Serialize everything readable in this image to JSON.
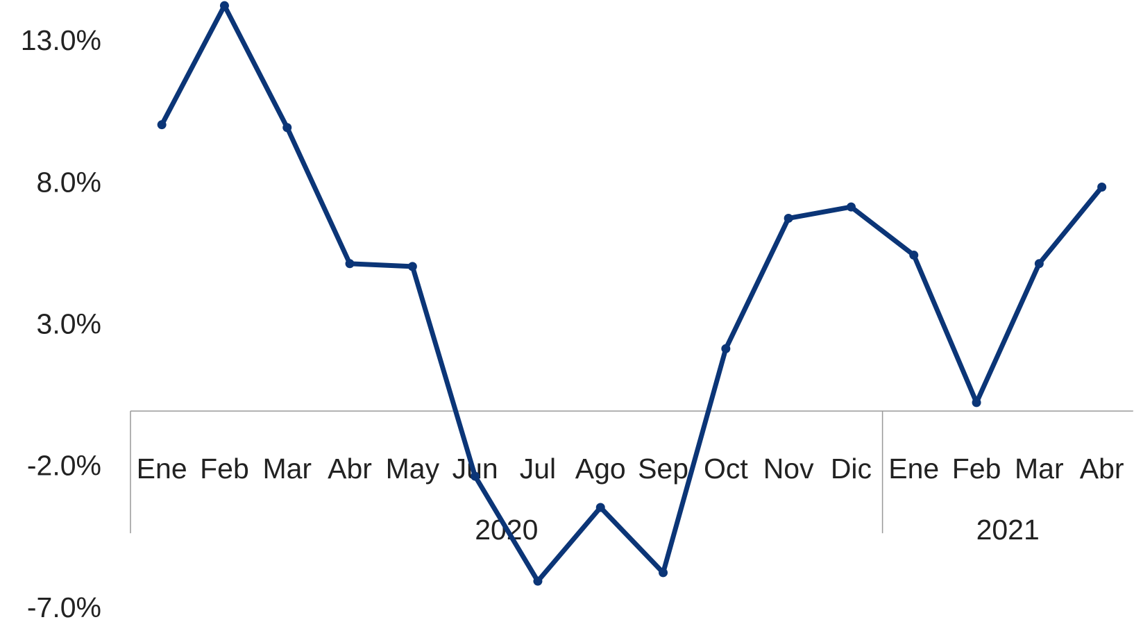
{
  "chart_data": {
    "type": "line",
    "groups": [
      {
        "label": "2020",
        "categories": [
          "Ene",
          "Feb",
          "Mar",
          "Abr",
          "May",
          "Jun",
          "Jul",
          "Ago",
          "Sep",
          "Oct",
          "Nov",
          "Dic"
        ]
      },
      {
        "label": "2021",
        "categories": [
          "Ene",
          "Feb",
          "Mar",
          "Abr"
        ]
      }
    ],
    "series": [
      {
        "color": "#0b3577",
        "values": [
          10.1,
          14.3,
          10.0,
          5.2,
          5.1,
          -2.3,
          -6.0,
          -3.4,
          -5.7,
          2.2,
          6.8,
          7.2,
          5.5,
          0.3,
          5.2,
          7.9
        ]
      }
    ],
    "ylim": [
      -7.0,
      14.5
    ],
    "yticks": [
      {
        "value": -7.0,
        "label": "-7.0%"
      },
      {
        "value": -2.0,
        "label": "-2.0%"
      },
      {
        "value": 3.0,
        "label": "3.0%"
      },
      {
        "value": 8.0,
        "label": "8.0%"
      },
      {
        "value": 13.0,
        "label": "13.0%"
      }
    ]
  }
}
